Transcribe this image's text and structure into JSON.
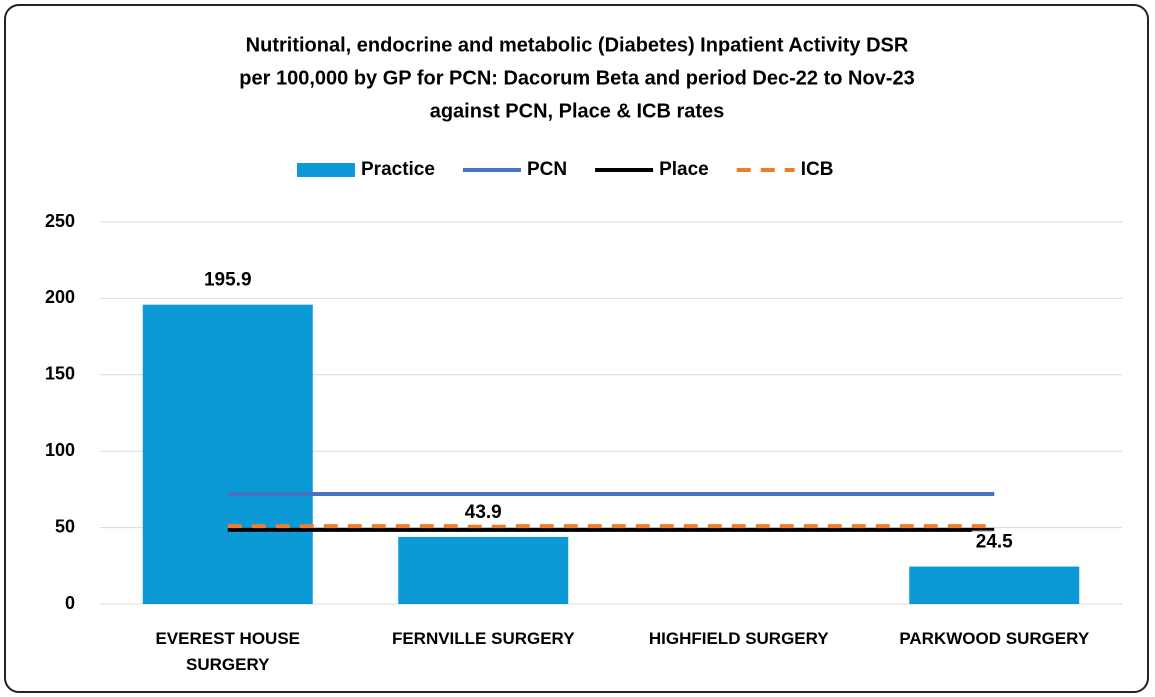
{
  "chart_data": {
    "type": "bar",
    "title": [
      "Nutritional, endocrine and metabolic (Diabetes) Inpatient Activity DSR",
      "per 100,000 by GP for PCN: Dacorum Beta and period Dec-22 to Nov-23",
      "against PCN, Place & ICB rates"
    ],
    "categories": [
      "EVEREST HOUSE SURGERY",
      "FERNVILLE SURGERY",
      "HIGHFIELD SURGERY",
      "PARKWOOD SURGERY"
    ],
    "series": [
      {
        "name": "Practice",
        "type": "bar",
        "color": "#0b9ad6",
        "values": [
          195.9,
          43.9,
          null,
          24.5
        ]
      },
      {
        "name": "PCN",
        "type": "line",
        "color": "#4472c4",
        "values": [
          72,
          72,
          72,
          72
        ]
      },
      {
        "name": "Place",
        "type": "line",
        "color": "#000000",
        "values": [
          48.5,
          48.5,
          48.5,
          48.5
        ]
      },
      {
        "name": "ICB",
        "type": "line",
        "dashed": true,
        "color": "#ed7d31",
        "values": [
          51,
          51,
          51,
          51
        ]
      }
    ],
    "ylim": [
      0,
      250
    ],
    "yticks": [
      0,
      50,
      100,
      150,
      200,
      250
    ],
    "grid": true,
    "legend": "top"
  }
}
